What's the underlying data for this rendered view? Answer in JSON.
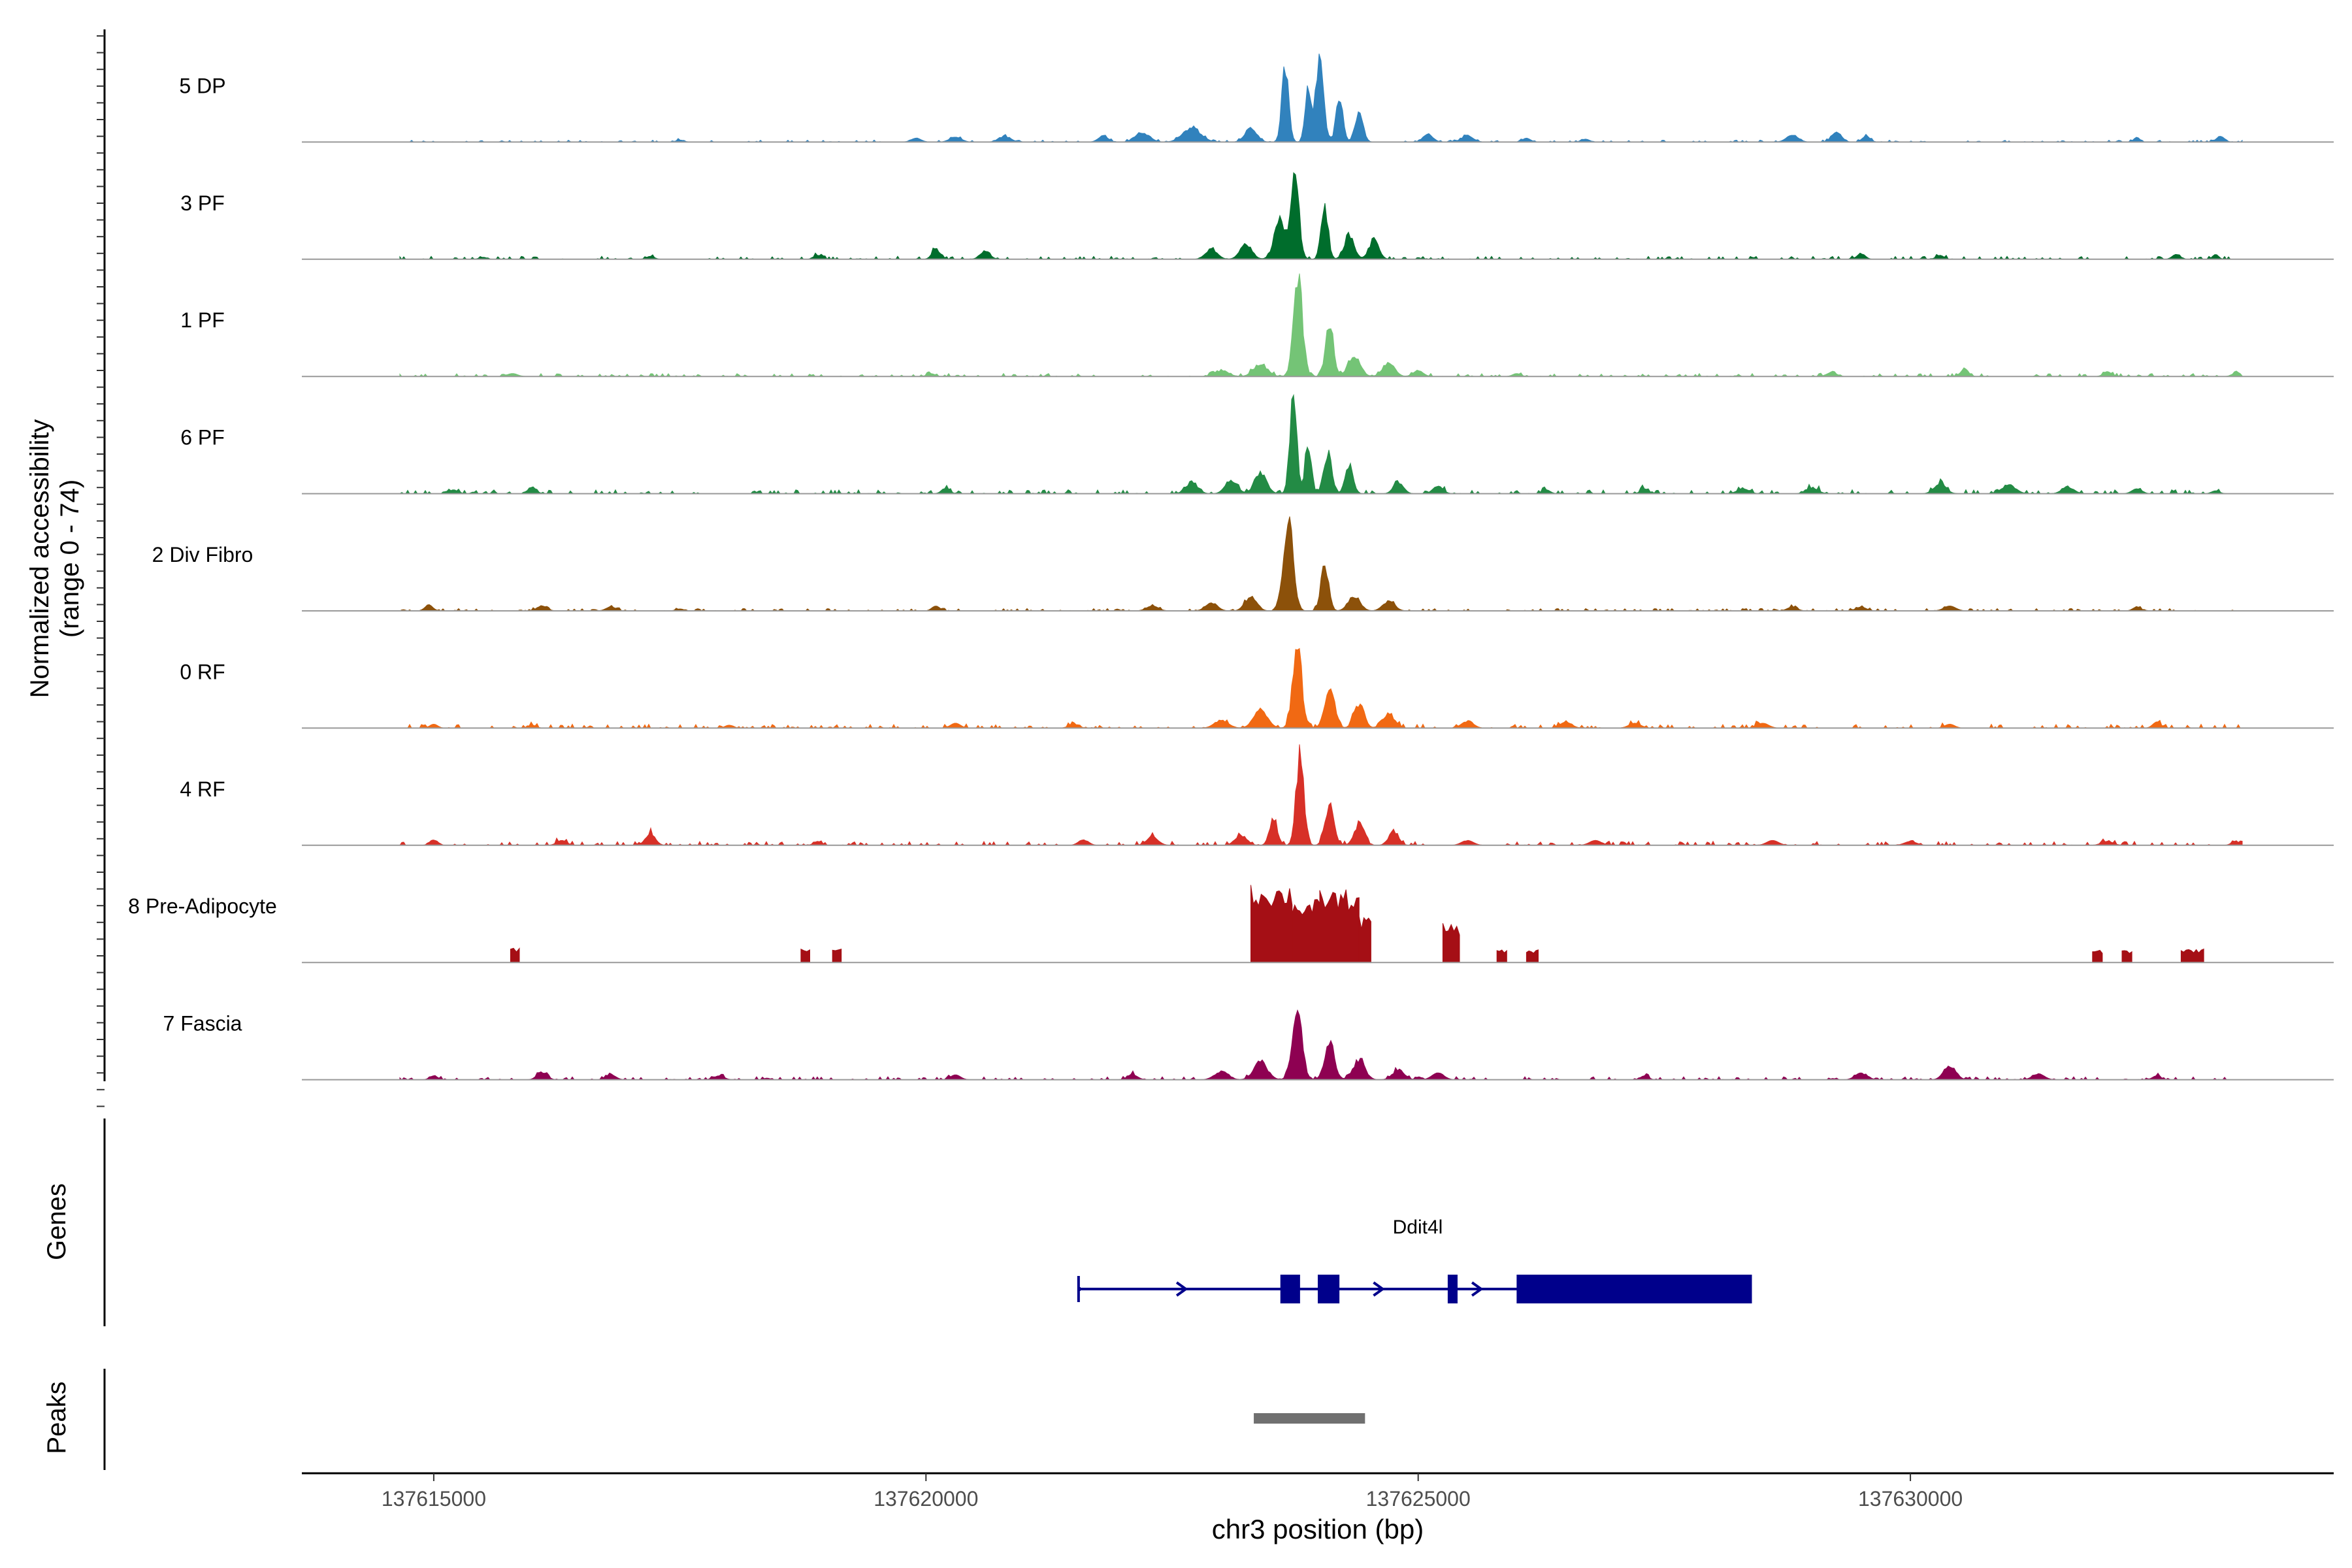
{
  "chart_data": {
    "type": "area",
    "title": "",
    "ylabel_line1": "Normalized accessibility",
    "ylabel_line2": "(range 0 - 74)",
    "xlabel": "chr3 position (bp)",
    "y_range": [
      0,
      74
    ],
    "x_range": [
      137613660,
      137634300
    ],
    "x_ticks": [
      137615000,
      137620000,
      137625000,
      137630000
    ],
    "x_tick_labels": [
      "137615000",
      "137620000",
      "137625000",
      "137630000"
    ],
    "tracks": [
      {
        "name": "5 DP",
        "color": "#3182bd",
        "max": 55,
        "peaks": [
          [
            137623650,
            0.75,
            35
          ],
          [
            137623880,
            0.52,
            30
          ],
          [
            137624000,
            0.85,
            40
          ],
          [
            137624200,
            0.45,
            35
          ],
          [
            137624400,
            0.32,
            40
          ],
          [
            137623300,
            0.14,
            60
          ],
          [
            137622700,
            0.15,
            90
          ],
          [
            137622200,
            0.1,
            70
          ],
          [
            137621800,
            0.06,
            50
          ],
          [
            137620800,
            0.06,
            60
          ],
          [
            137620300,
            0.05,
            60
          ],
          [
            137619900,
            0.04,
            50
          ],
          [
            137625100,
            0.08,
            50
          ],
          [
            137625500,
            0.06,
            60
          ],
          [
            137628800,
            0.07,
            60
          ],
          [
            137629250,
            0.1,
            50
          ],
          [
            137629550,
            0.06,
            40
          ],
          [
            137632300,
            0.05,
            30
          ],
          [
            137633150,
            0.06,
            40
          ],
          [
            137626100,
            0.04,
            40
          ],
          [
            137626700,
            0.03,
            40
          ],
          [
            137617500,
            0.02,
            40
          ]
        ],
        "baseline_noise": 0.01
      },
      {
        "name": "3 PF",
        "color": "#006d2c",
        "max": 55,
        "peaks": [
          [
            137623750,
            0.85,
            40
          ],
          [
            137623600,
            0.4,
            60
          ],
          [
            137624050,
            0.55,
            35
          ],
          [
            137624300,
            0.25,
            50
          ],
          [
            137624550,
            0.2,
            50
          ],
          [
            137623250,
            0.15,
            60
          ],
          [
            137622900,
            0.1,
            60
          ],
          [
            137620100,
            0.1,
            40
          ],
          [
            137620600,
            0.08,
            50
          ],
          [
            137629500,
            0.06,
            40
          ],
          [
            137630300,
            0.04,
            40
          ],
          [
            137632700,
            0.05,
            40
          ],
          [
            137633100,
            0.05,
            30
          ],
          [
            137618900,
            0.04,
            40
          ],
          [
            137617200,
            0.03,
            40
          ],
          [
            137615500,
            0.02,
            40
          ]
        ],
        "baseline_noise": 0.015
      },
      {
        "name": "1 PF",
        "color": "#74c476",
        "max": 55,
        "peaks": [
          [
            137623780,
            1.0,
            45
          ],
          [
            137624100,
            0.55,
            40
          ],
          [
            137624350,
            0.22,
            60
          ],
          [
            137624700,
            0.14,
            60
          ],
          [
            137623400,
            0.12,
            70
          ],
          [
            137623000,
            0.06,
            70
          ],
          [
            137625000,
            0.06,
            50
          ],
          [
            137630550,
            0.07,
            40
          ],
          [
            137632000,
            0.05,
            40
          ],
          [
            137629200,
            0.04,
            50
          ],
          [
            137615800,
            0.03,
            50
          ],
          [
            137620050,
            0.03,
            40
          ],
          [
            137626000,
            0.03,
            40
          ],
          [
            137633300,
            0.03,
            40
          ]
        ],
        "baseline_noise": 0.015
      },
      {
        "name": "6 PF",
        "color": "#238b45",
        "max": 55,
        "peaks": [
          [
            137623730,
            1.0,
            35
          ],
          [
            137623880,
            0.55,
            30
          ],
          [
            137624080,
            0.42,
            40
          ],
          [
            137624300,
            0.3,
            40
          ],
          [
            137623400,
            0.22,
            60
          ],
          [
            137623100,
            0.14,
            60
          ],
          [
            137622700,
            0.12,
            60
          ],
          [
            137624800,
            0.12,
            50
          ],
          [
            137625200,
            0.08,
            50
          ],
          [
            137630300,
            0.1,
            60
          ],
          [
            137631000,
            0.09,
            70
          ],
          [
            137631600,
            0.07,
            60
          ],
          [
            137629000,
            0.06,
            60
          ],
          [
            137628300,
            0.05,
            60
          ],
          [
            137632300,
            0.05,
            50
          ],
          [
            137616000,
            0.07,
            40
          ],
          [
            137615200,
            0.04,
            40
          ],
          [
            137620200,
            0.06,
            40
          ],
          [
            137627300,
            0.05,
            40
          ],
          [
            137626300,
            0.04,
            40
          ],
          [
            137633100,
            0.03,
            40
          ]
        ],
        "baseline_noise": 0.02
      },
      {
        "name": "2 Div Fibro",
        "color": "#8c510a",
        "max": 55,
        "peaks": [
          [
            137623680,
            0.95,
            50
          ],
          [
            137624050,
            0.45,
            40
          ],
          [
            137624350,
            0.15,
            60
          ],
          [
            137624700,
            0.1,
            60
          ],
          [
            137623300,
            0.14,
            60
          ],
          [
            137622900,
            0.08,
            60
          ],
          [
            137622300,
            0.05,
            60
          ],
          [
            137620100,
            0.05,
            40
          ],
          [
            137614950,
            0.06,
            40
          ],
          [
            137616100,
            0.05,
            50
          ],
          [
            137616800,
            0.04,
            50
          ],
          [
            137630400,
            0.05,
            60
          ],
          [
            137629500,
            0.04,
            50
          ],
          [
            137628800,
            0.04,
            50
          ],
          [
            137632300,
            0.04,
            40
          ],
          [
            137617500,
            0.02,
            40
          ]
        ],
        "baseline_noise": 0.012
      },
      {
        "name": "0 RF",
        "color": "#f16913",
        "max": 55,
        "peaks": [
          [
            137623770,
            0.85,
            45
          ],
          [
            137624100,
            0.4,
            50
          ],
          [
            137624400,
            0.25,
            50
          ],
          [
            137624700,
            0.15,
            60
          ],
          [
            137623400,
            0.18,
            70
          ],
          [
            137623000,
            0.08,
            70
          ],
          [
            137625500,
            0.07,
            60
          ],
          [
            137626500,
            0.06,
            60
          ],
          [
            137627200,
            0.05,
            60
          ],
          [
            137628500,
            0.05,
            60
          ],
          [
            137630400,
            0.04,
            50
          ],
          [
            137620300,
            0.05,
            50
          ],
          [
            137621500,
            0.04,
            50
          ],
          [
            137632500,
            0.06,
            40
          ],
          [
            137615000,
            0.04,
            40
          ],
          [
            137616000,
            0.03,
            40
          ],
          [
            137618000,
            0.03,
            40
          ]
        ],
        "baseline_noise": 0.02
      },
      {
        "name": "4 RF",
        "color": "#d73027",
        "max": 55,
        "peaks": [
          [
            137623800,
            0.9,
            40
          ],
          [
            137623530,
            0.28,
            40
          ],
          [
            137624100,
            0.4,
            45
          ],
          [
            137624400,
            0.22,
            50
          ],
          [
            137624750,
            0.14,
            50
          ],
          [
            137623200,
            0.1,
            60
          ],
          [
            137622300,
            0.08,
            60
          ],
          [
            137621600,
            0.06,
            50
          ],
          [
            137617200,
            0.12,
            50
          ],
          [
            137615000,
            0.06,
            40
          ],
          [
            137616300,
            0.05,
            50
          ],
          [
            137618900,
            0.04,
            40
          ],
          [
            137625500,
            0.05,
            60
          ],
          [
            137626800,
            0.05,
            60
          ],
          [
            137628600,
            0.05,
            60
          ],
          [
            137630000,
            0.04,
            60
          ],
          [
            137632000,
            0.04,
            60
          ],
          [
            137633300,
            0.04,
            40
          ]
        ],
        "baseline_noise": 0.02
      },
      {
        "name": "8 Pre-Adipocyte",
        "color": "#a50f15",
        "max": 55,
        "blocks": [
          [
            137623300,
            137623720,
            0.8
          ],
          [
            137623720,
            137624000,
            0.65
          ],
          [
            137624000,
            137624400,
            0.75
          ],
          [
            137624400,
            137624520,
            0.48
          ],
          [
            137625250,
            137625420,
            0.4
          ],
          [
            137615780,
            137615870,
            0.15
          ],
          [
            137618730,
            137618820,
            0.15
          ],
          [
            137619050,
            137619140,
            0.15
          ],
          [
            137625800,
            137625900,
            0.13
          ],
          [
            137626100,
            137626220,
            0.13
          ],
          [
            137631850,
            137631950,
            0.13
          ],
          [
            137632150,
            137632250,
            0.13
          ],
          [
            137632750,
            137632980,
            0.14
          ]
        ]
      },
      {
        "name": "7 Fascia",
        "color": "#8e0152",
        "max": 55,
        "peaks": [
          [
            137623770,
            0.72,
            50
          ],
          [
            137624100,
            0.38,
            50
          ],
          [
            137624400,
            0.2,
            60
          ],
          [
            137623400,
            0.18,
            70
          ],
          [
            137623000,
            0.08,
            70
          ],
          [
            137624800,
            0.1,
            60
          ],
          [
            137625200,
            0.07,
            60
          ],
          [
            137630400,
            0.15,
            60
          ],
          [
            137629500,
            0.07,
            60
          ],
          [
            137631300,
            0.06,
            60
          ],
          [
            137616100,
            0.08,
            50
          ],
          [
            137616800,
            0.05,
            50
          ],
          [
            137615000,
            0.04,
            40
          ],
          [
            137617900,
            0.04,
            50
          ],
          [
            137620300,
            0.05,
            50
          ],
          [
            137622100,
            0.05,
            50
          ],
          [
            137627300,
            0.04,
            40
          ],
          [
            137632500,
            0.04,
            40
          ]
        ],
        "baseline_noise": 0.015
      }
    ],
    "genes": {
      "label": "Genes",
      "gene_name": "Ddit4l",
      "color": "#00008b",
      "start": 137621550,
      "end": 137628390,
      "exons": [
        [
          137621550,
          137621570
        ],
        [
          137623600,
          137623800
        ],
        [
          137623980,
          137624200
        ],
        [
          137625300,
          137625400
        ],
        [
          137626000,
          137628390
        ]
      ],
      "arrows": [
        137622600,
        137624600,
        137625600
      ]
    },
    "peaks_track": {
      "label": "Peaks",
      "color": "#707070",
      "regions": [
        [
          137623330,
          137624460
        ]
      ]
    }
  }
}
